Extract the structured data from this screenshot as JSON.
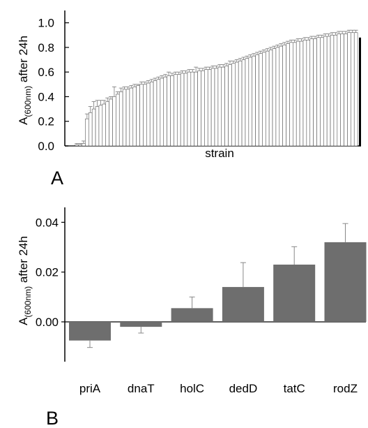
{
  "chart_data": [
    {
      "panel_label": "A",
      "type": "bar",
      "xlabel": "strain",
      "ylabel_main": "A",
      "ylabel_sub": "(600nm)",
      "ylabel_rest": " after 24h",
      "ylim": [
        0,
        1.1
      ],
      "yticks": [
        0.0,
        0.2,
        0.4,
        0.6,
        0.8,
        1.0
      ],
      "ytick_labels": [
        "0.0",
        "0.2",
        "0.4",
        "0.6",
        "0.8",
        "1.0"
      ],
      "bar_color": "#ffffff",
      "highlight_color": "#000000",
      "values": [
        0.0,
        0.0,
        0.01,
        0.01,
        0.02,
        0.22,
        0.27,
        0.3,
        0.32,
        0.33,
        0.34,
        0.36,
        0.38,
        0.4,
        0.42,
        0.44,
        0.46,
        0.46,
        0.47,
        0.48,
        0.49,
        0.5,
        0.5,
        0.51,
        0.52,
        0.53,
        0.54,
        0.55,
        0.56,
        0.57,
        0.57,
        0.58,
        0.58,
        0.59,
        0.59,
        0.6,
        0.6,
        0.6,
        0.61,
        0.61,
        0.62,
        0.62,
        0.63,
        0.63,
        0.64,
        0.64,
        0.65,
        0.66,
        0.67,
        0.68,
        0.69,
        0.7,
        0.71,
        0.72,
        0.73,
        0.74,
        0.75,
        0.76,
        0.77,
        0.78,
        0.79,
        0.8,
        0.81,
        0.82,
        0.83,
        0.84,
        0.84,
        0.85,
        0.85,
        0.86,
        0.86,
        0.87,
        0.87,
        0.88,
        0.88,
        0.89,
        0.89,
        0.9,
        0.9,
        0.91,
        0.91,
        0.91,
        0.92,
        0.92,
        0.92,
        0.88
      ],
      "errors": [
        0.0,
        0.0,
        0.01,
        0.01,
        0.02,
        0.04,
        0.05,
        0.06,
        0.05,
        0.04,
        0.03,
        0.03,
        0.02,
        0.08,
        0.02,
        0.03,
        0.02,
        0.02,
        0.02,
        0.02,
        0.01,
        0.02,
        0.02,
        0.02,
        0.02,
        0.02,
        0.02,
        0.02,
        0.02,
        0.03,
        0.02,
        0.02,
        0.02,
        0.02,
        0.02,
        0.02,
        0.02,
        0.04,
        0.02,
        0.02,
        0.02,
        0.02,
        0.02,
        0.02,
        0.02,
        0.02,
        0.02,
        0.03,
        0.02,
        0.02,
        0.02,
        0.02,
        0.02,
        0.02,
        0.02,
        0.02,
        0.02,
        0.02,
        0.02,
        0.02,
        0.02,
        0.02,
        0.02,
        0.02,
        0.02,
        0.02,
        0.02,
        0.02,
        0.02,
        0.02,
        0.02,
        0.02,
        0.02,
        0.02,
        0.02,
        0.02,
        0.02,
        0.02,
        0.02,
        0.02,
        0.02,
        0.02,
        0.02,
        0.02,
        0.02,
        0.0
      ]
    },
    {
      "panel_label": "B",
      "type": "bar",
      "xlabel": "",
      "ylabel_main": "A",
      "ylabel_sub": "(600nm)",
      "ylabel_rest": " after 24h",
      "ylim": [
        -0.016,
        0.046
      ],
      "yticks": [
        0.0,
        0.02,
        0.04
      ],
      "ytick_labels": [
        "0.00",
        "0.02",
        "0.04"
      ],
      "bar_color": "#6e6e6e",
      "categories": [
        "priA",
        "dnaT",
        "holC",
        "dedD",
        "tatC",
        "rodZ"
      ],
      "values": [
        -0.0075,
        -0.002,
        0.0055,
        0.014,
        0.023,
        0.032
      ],
      "errors": [
        0.0028,
        0.0025,
        0.0045,
        0.0098,
        0.0072,
        0.0075
      ]
    }
  ]
}
